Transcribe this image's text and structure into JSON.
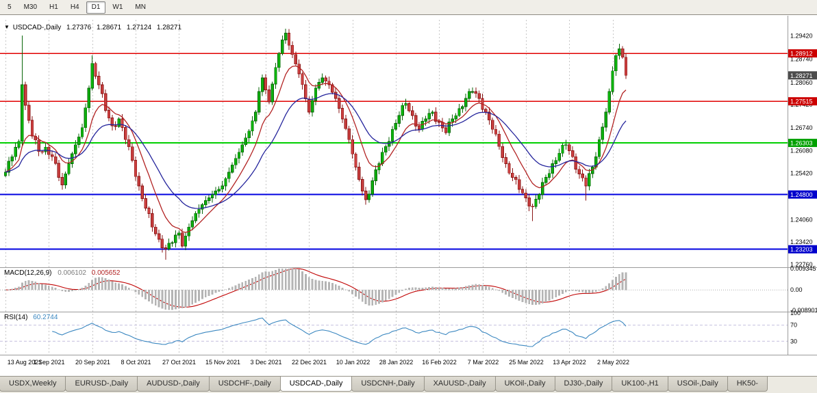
{
  "toolbar": {
    "timeframes": [
      {
        "label": "5",
        "active": false
      },
      {
        "label": "M30",
        "active": false
      },
      {
        "label": "H1",
        "active": false
      },
      {
        "label": "H4",
        "active": false
      },
      {
        "label": "D1",
        "active": true
      },
      {
        "label": "W1",
        "active": false
      },
      {
        "label": "MN",
        "active": false
      }
    ]
  },
  "chart": {
    "title_symbol": "USDCAD-,Daily",
    "ohlc": {
      "open": "1.27376",
      "high": "1.28671",
      "low": "1.27124",
      "close": "1.28271"
    }
  },
  "chart_data": {
    "type": "candlestick",
    "symbol": "USDCAD-,Daily",
    "bar_count": 187,
    "bars_per_label": 13,
    "x_labels": [
      "13 Aug 2021",
      "1 Sep 2021",
      "20 Sep 2021",
      "8 Oct 2021",
      "27 Oct 2021",
      "15 Nov 2021",
      "3 Dec 2021",
      "22 Dec 2021",
      "10 Jan 2022",
      "28 Jan 2022",
      "16 Feb 2022",
      "7 Mar 2022",
      "25 Mar 2022",
      "13 Apr 2022",
      "2 May 2022"
    ],
    "ylim": [
      1.2272,
      1.2989
    ],
    "y_ticks": [
      "1.29420",
      "1.28740",
      "1.28060",
      "1.27420",
      "1.26740",
      "1.26080",
      "1.25420",
      "1.24060",
      "1.23420",
      "1.22760"
    ],
    "price_path": [
      [
        0,
        1.2545
      ],
      [
        2,
        1.259
      ],
      [
        4,
        1.2635
      ],
      [
        5,
        1.28
      ],
      [
        6,
        1.274
      ],
      [
        8,
        1.265
      ],
      [
        10,
        1.2605
      ],
      [
        12,
        1.2618
      ],
      [
        14,
        1.259
      ],
      [
        16,
        1.253
      ],
      [
        17,
        1.2508
      ],
      [
        19,
        1.257
      ],
      [
        21,
        1.2625
      ],
      [
        23,
        1.2675
      ],
      [
        25,
        1.279
      ],
      [
        26,
        1.2862
      ],
      [
        28,
        1.28
      ],
      [
        30,
        1.2725
      ],
      [
        32,
        1.268
      ],
      [
        34,
        1.27
      ],
      [
        36,
        1.264
      ],
      [
        38,
        1.258
      ],
      [
        40,
        1.2505
      ],
      [
        42,
        1.244
      ],
      [
        44,
        1.2385
      ],
      [
        46,
        1.235
      ],
      [
        48,
        1.2322
      ],
      [
        50,
        1.234
      ],
      [
        52,
        1.2368
      ],
      [
        53,
        1.233
      ],
      [
        55,
        1.2385
      ],
      [
        57,
        1.2425
      ],
      [
        59,
        1.245
      ],
      [
        61,
        1.247
      ],
      [
        63,
        1.249
      ],
      [
        65,
        1.2505
      ],
      [
        67,
        1.2545
      ],
      [
        69,
        1.2585
      ],
      [
        71,
        1.2625
      ],
      [
        73,
        1.2665
      ],
      [
        75,
        1.272
      ],
      [
        76,
        1.278
      ],
      [
        77,
        1.282
      ],
      [
        78,
        1.2785
      ],
      [
        79,
        1.275
      ],
      [
        81,
        1.285
      ],
      [
        83,
        1.293
      ],
      [
        84,
        1.295
      ],
      [
        85,
        1.2915
      ],
      [
        87,
        1.286
      ],
      [
        89,
        1.28
      ],
      [
        91,
        1.272
      ],
      [
        93,
        1.279
      ],
      [
        95,
        1.282
      ],
      [
        97,
        1.28
      ],
      [
        99,
        1.276
      ],
      [
        101,
        1.27
      ],
      [
        103,
        1.264
      ],
      [
        105,
        1.256
      ],
      [
        107,
        1.249
      ],
      [
        108,
        1.2465
      ],
      [
        110,
        1.252
      ],
      [
        112,
        1.257
      ],
      [
        114,
        1.262
      ],
      [
        116,
        1.267
      ],
      [
        118,
        1.271
      ],
      [
        120,
        1.2745
      ],
      [
        122,
        1.271
      ],
      [
        124,
        1.267
      ],
      [
        126,
        1.27
      ],
      [
        128,
        1.272
      ],
      [
        130,
        1.269
      ],
      [
        132,
        1.266
      ],
      [
        134,
        1.27
      ],
      [
        136,
        1.273
      ],
      [
        138,
        1.276
      ],
      [
        140,
        1.278
      ],
      [
        142,
        1.276
      ],
      [
        144,
        1.272
      ],
      [
        146,
        1.267
      ],
      [
        148,
        1.262
      ],
      [
        150,
        1.257
      ],
      [
        152,
        1.253
      ],
      [
        154,
        1.2495
      ],
      [
        156,
        1.247
      ],
      [
        158,
        1.2445
      ],
      [
        160,
        1.248
      ],
      [
        162,
        1.253
      ],
      [
        164,
        1.257
      ],
      [
        166,
        1.26
      ],
      [
        168,
        1.2625
      ],
      [
        170,
        1.259
      ],
      [
        172,
        1.254
      ],
      [
        174,
        1.2505
      ],
      [
        176,
        1.256
      ],
      [
        178,
        1.264
      ],
      [
        180,
        1.272
      ],
      [
        181,
        1.278
      ],
      [
        182,
        1.284
      ],
      [
        183,
        1.2885
      ],
      [
        184,
        1.2905
      ],
      [
        185,
        1.288
      ],
      [
        186,
        1.2827
      ]
    ],
    "wick_overrides": {
      "5": {
        "high": 1.2943
      },
      "26": {
        "high": 1.2885
      },
      "48": {
        "low": 1.229
      },
      "84": {
        "high": 1.2963
      },
      "108": {
        "low": 1.245
      },
      "158": {
        "low": 1.2402
      },
      "174": {
        "low": 1.2462
      },
      "184": {
        "high": 1.2912
      }
    },
    "hlines": [
      {
        "price": 1.28912,
        "color": "#e00000",
        "width": 1.5,
        "badge": "1.28912",
        "badge_color": "#cc0000"
      },
      {
        "price": 1.27515,
        "color": "#e00000",
        "width": 1.5,
        "badge": "1.27515",
        "badge_color": "#cc0000"
      },
      {
        "price": 1.26303,
        "color": "#00cf00",
        "width": 2,
        "badge": "1.26303",
        "badge_color": "#00a000"
      },
      {
        "price": 1.248,
        "color": "#0000e0",
        "width": 2,
        "badge": "1.24800",
        "badge_color": "#0000cc"
      },
      {
        "price": 1.23203,
        "color": "#0000e0",
        "width": 2,
        "badge": "1.23203",
        "badge_color": "#0000cc"
      }
    ],
    "current_price": {
      "value": "1.28271",
      "price": 1.28271,
      "badge_color": "#4d4d4d"
    },
    "moving_averages": [
      {
        "period": 10,
        "color": "#b22222"
      },
      {
        "period": 24,
        "color": "#24249c"
      }
    ],
    "colors": {
      "candle_up_fill": "#0db30d",
      "candle_up_stroke": "#076607",
      "candle_down_fill": "#cb4040",
      "candle_down_stroke": "#8a1515",
      "grid": "#c6c6c6",
      "separator": "#9b9b9b",
      "axis_text": "#000000"
    },
    "macd": {
      "label_name": "MACD(12,26,9)",
      "value_main": "0.006102",
      "value_signal": "0.005652",
      "fast": 12,
      "slow": 26,
      "signal_period": 9,
      "hist_color": "#b4b4b4",
      "signal_color": "#c00000",
      "ticks": [
        {
          "v": 0.009345,
          "label": "0.009345"
        },
        {
          "v": 0,
          "label": "0.00"
        },
        {
          "v": -0.008901,
          "label": "-0.008901"
        }
      ],
      "range": [
        -0.008901,
        0.009345
      ]
    },
    "rsi": {
      "label_name": "RSI(14)",
      "value": "60.2744",
      "period": 14,
      "line_color": "#3a87c0",
      "level_color": "#c4bede",
      "levels": [
        70,
        30
      ],
      "ticks": [
        {
          "v": 100,
          "label": "100"
        },
        {
          "v": 70,
          "label": "70"
        },
        {
          "v": 30,
          "label": "30"
        }
      ]
    }
  },
  "tabs": {
    "items": [
      {
        "label": "USDX,Weekly",
        "active": false
      },
      {
        "label": "EURUSD-,Daily",
        "active": false
      },
      {
        "label": "AUDUSD-,Daily",
        "active": false
      },
      {
        "label": "USDCHF-,Daily",
        "active": false
      },
      {
        "label": "USDCAD-,Daily",
        "active": true
      },
      {
        "label": "USDCNH-,Daily",
        "active": false
      },
      {
        "label": "XAUUSD-,Daily",
        "active": false
      },
      {
        "label": "UKOil-,Daily",
        "active": false
      },
      {
        "label": "DJ30-,Daily",
        "active": false
      },
      {
        "label": "UK100-,H1",
        "active": false
      },
      {
        "label": "USOil-,Daily",
        "active": false
      },
      {
        "label": "HK50-",
        "active": false
      }
    ]
  }
}
